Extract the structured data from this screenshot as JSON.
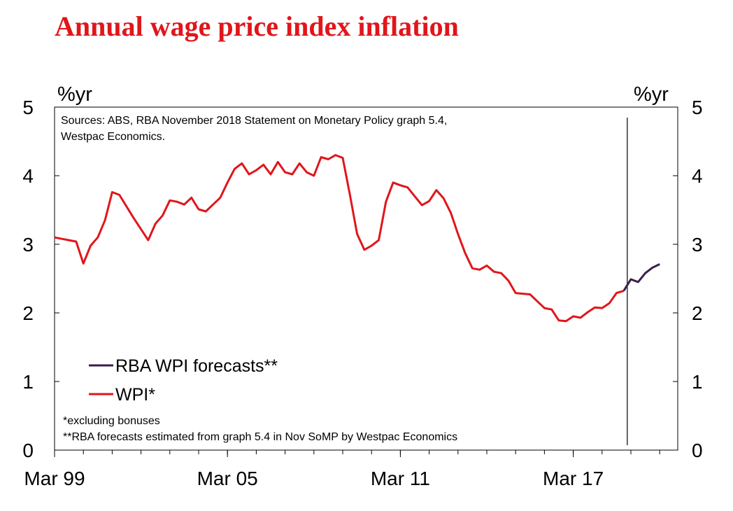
{
  "title": "Annual wage price index inflation",
  "colors": {
    "title": "#e0161b",
    "wpi": "#e0161b",
    "forecast": "#3a1e4c"
  },
  "chart_data": {
    "type": "line",
    "title": "Annual wage price index inflation",
    "ylabel_left": "%yr",
    "ylabel_right": "%yr",
    "ylim": [
      0,
      5
    ],
    "yticks": [
      "0",
      "1",
      "2",
      "3",
      "4",
      "5"
    ],
    "xticks": [
      "Mar 99",
      "Mar 05",
      "Mar 11",
      "Mar 17"
    ],
    "x_start": "Mar 99",
    "note_sources": "Sources: ABS, RBA November 2018 Statement on Monetary Policy graph 5.4,",
    "note_sources_2": "Westpac Economics.",
    "footnote_1": "*excluding bonuses",
    "footnote_2": "**RBA forecasts estimated from graph 5.4 in Nov SoMP by Westpac Economics",
    "forecast_start_quarter": 79,
    "series": [
      {
        "name": "WPI*",
        "color": "#e0161b",
        "start_quarter": 0,
        "values": [
          3.1,
          3.08,
          3.06,
          3.04,
          2.72,
          2.98,
          3.1,
          3.35,
          3.76,
          3.72,
          3.55,
          3.38,
          3.22,
          3.06,
          3.3,
          3.42,
          3.64,
          3.62,
          3.58,
          3.68,
          3.51,
          3.48,
          3.58,
          3.68,
          3.9,
          4.1,
          4.18,
          4.02,
          4.08,
          4.16,
          4.02,
          4.2,
          4.05,
          4.02,
          4.18,
          4.05,
          4.0,
          4.27,
          4.24,
          4.3,
          4.26,
          3.72,
          3.15,
          2.92,
          2.98,
          3.06,
          3.62,
          3.9,
          3.86,
          3.83,
          3.7,
          3.57,
          3.63,
          3.79,
          3.67,
          3.46,
          3.15,
          2.87,
          2.65,
          2.63,
          2.69,
          2.6,
          2.58,
          2.47,
          2.29,
          2.28,
          2.27,
          2.17,
          2.07,
          2.05,
          1.89,
          1.88,
          1.95,
          1.93,
          2.01,
          2.08,
          2.07,
          2.14,
          2.29,
          2.32
        ]
      },
      {
        "name": "RBA WPI forecasts**",
        "color": "#3a1e4c",
        "start_quarter": 79,
        "values": [
          2.32,
          2.49,
          2.45,
          2.58,
          2.66,
          2.71
        ]
      }
    ],
    "legend_order": [
      "RBA WPI forecasts**",
      "WPI*"
    ],
    "legend_position": "lower-left"
  }
}
